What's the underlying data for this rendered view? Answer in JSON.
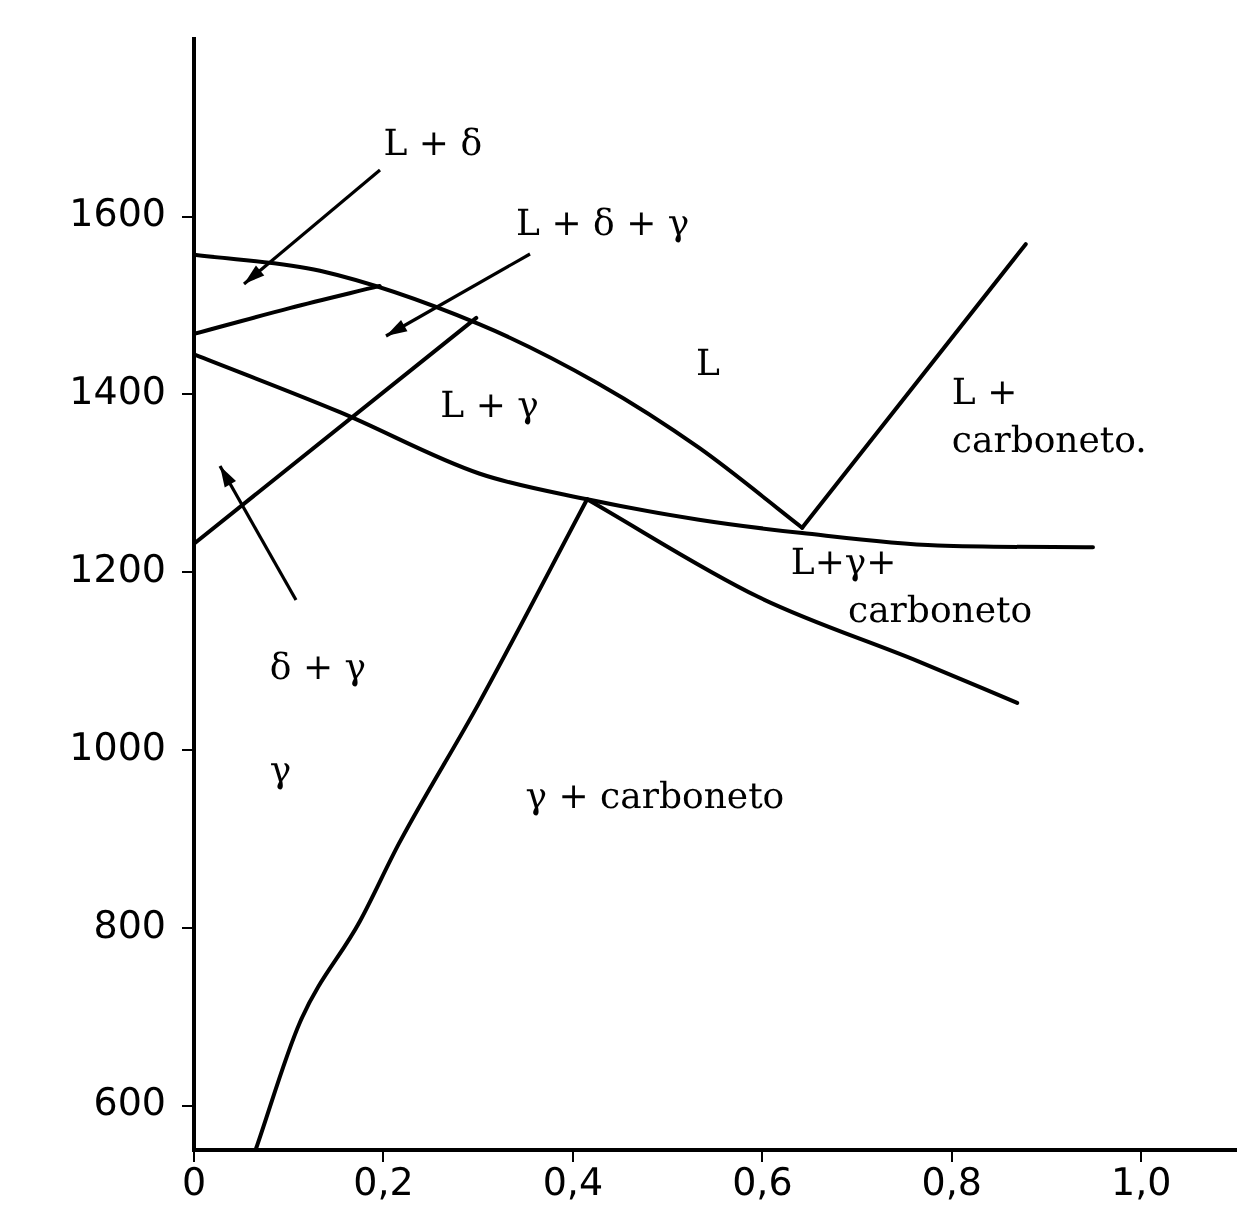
{
  "chart_data": {
    "type": "line",
    "xlim": [
      0,
      1.1
    ],
    "ylim": [
      550,
      1800
    ],
    "xticks": [
      0,
      {
        "value": 0.2,
        "label": "0,2"
      },
      {
        "value": 0.4,
        "label": "0,4"
      },
      {
        "value": 0.6,
        "label": "0,6"
      },
      {
        "value": 0.8,
        "label": "0,8"
      },
      {
        "value": 1.0,
        "label": "1,0"
      }
    ],
    "yticks": [
      600,
      800,
      1000,
      1200,
      1400,
      1600
    ],
    "grid": false,
    "legend": false,
    "marker": "none",
    "line_style": "solid",
    "series": [
      {
        "color": "#000000",
        "x": [
          0,
          0.133,
          0.301,
          0.427,
          0.533,
          0.642
        ],
        "values": [
          1557,
          1539,
          1479,
          1412,
          1340,
          1250
        ]
      },
      {
        "color": "#000000",
        "x": [
          0.642,
          0.878
        ],
        "values": [
          1250,
          1569
        ]
      },
      {
        "color": "#000000",
        "x": [
          0,
          0.101,
          0.196
        ],
        "values": [
          1468,
          1497,
          1522
        ]
      },
      {
        "color": "#000000",
        "x": [
          0,
          0.298
        ],
        "values": [
          1232,
          1486
        ]
      },
      {
        "color": "#000000",
        "x": [
          0,
          0.154,
          0.301,
          0.415,
          0.533,
          0.642,
          0.785,
          0.949
        ],
        "values": [
          1445,
          1380,
          1311,
          1282,
          1259,
          1244,
          1230,
          1228
        ]
      },
      {
        "color": "#000000",
        "x": [
          0.065,
          0.112,
          0.175,
          0.217,
          0.301,
          0.415
        ],
        "values": [
          550,
          694,
          807,
          896,
          1053,
          1282
        ]
      },
      {
        "color": "#000000",
        "x": [
          0.415,
          0.596,
          0.764,
          0.869
        ],
        "values": [
          1282,
          1172,
          1100,
          1053
        ]
      }
    ],
    "annotations": [
      "L + δ",
      "L + δ + γ",
      "L",
      "L + γ",
      "L +\ncarboneto.",
      "L+γ+\n     carboneto",
      "δ + γ",
      "γ",
      "γ + carboneto"
    ]
  }
}
